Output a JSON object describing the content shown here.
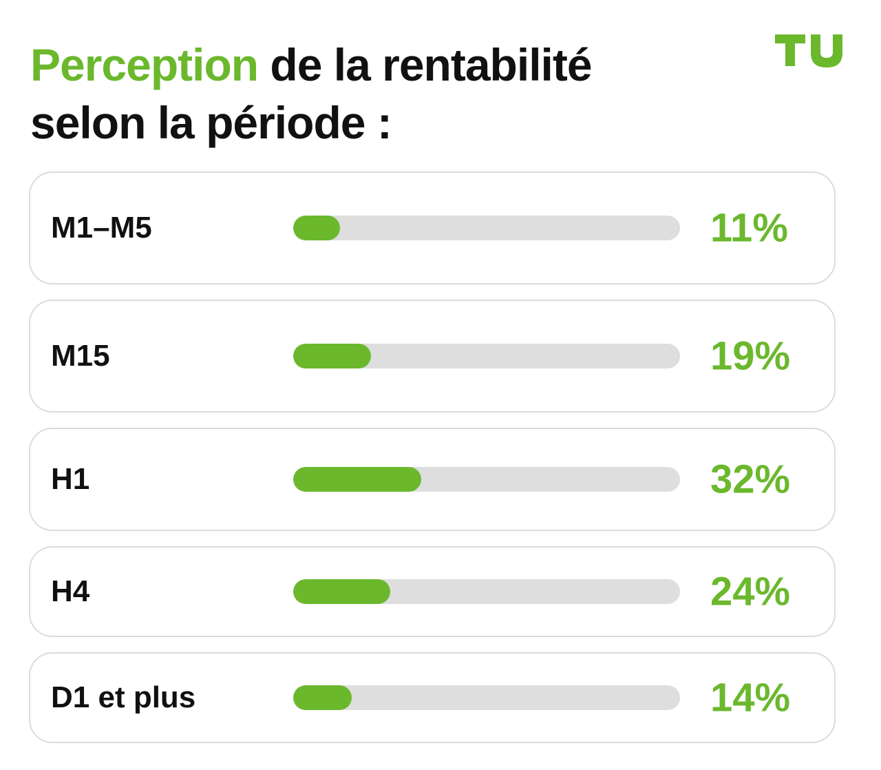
{
  "header": {
    "title_accent": "Perception",
    "title_rest": " de la rentabilité selon la période :",
    "logo_text": "TU"
  },
  "colors": {
    "accent": "#6bb82d",
    "track": "#dedede",
    "text": "#111111",
    "border": "#dcdcdc"
  },
  "chart_data": {
    "type": "bar",
    "orientation": "horizontal",
    "title": "Perception de la rentabilité selon la période :",
    "categories": [
      "M1–M5",
      "M15",
      "H1",
      "H4",
      "D1 et plus"
    ],
    "values": [
      11,
      19,
      32,
      24,
      14
    ],
    "value_labels": [
      "11%",
      "19%",
      "32%",
      "24%",
      "14%"
    ],
    "unit": "%",
    "xlim": [
      0,
      100
    ],
    "grid": false,
    "legend": "none"
  }
}
